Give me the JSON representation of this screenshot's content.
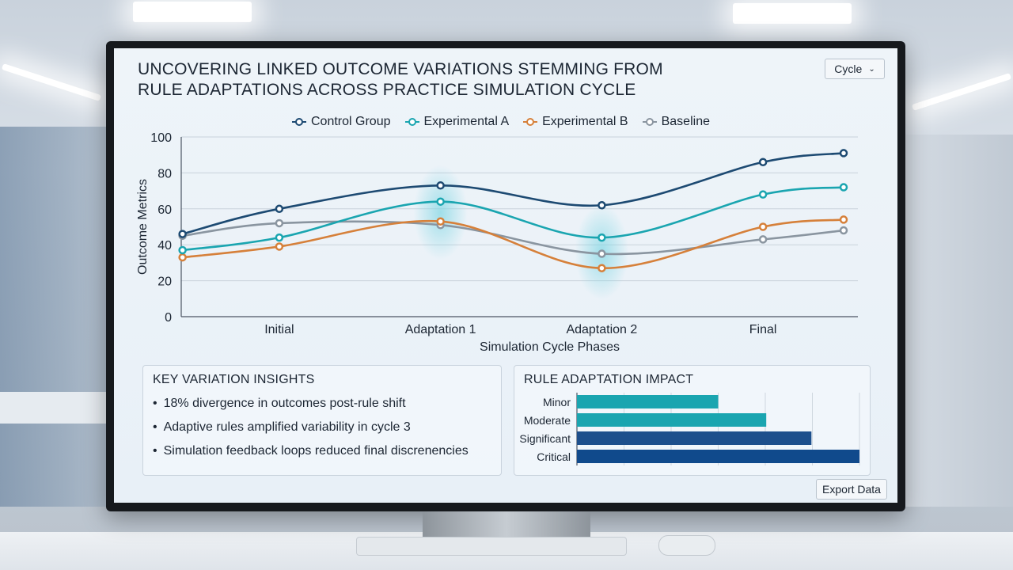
{
  "page": {
    "title_line1": "UNCOVERING LINKED OUTCOME VARIATIONS STEMMING FROM",
    "title_line2": "RULE ADAPTATIONS ACROSS PRACTICE SIMULATION CYCLE",
    "cycle_select": {
      "value": "Cycle",
      "icon": "chevron-down-icon"
    },
    "export_label": "Export Data"
  },
  "insights": {
    "title": "KEY VARIATION INSIGHTS",
    "items": [
      "18% divergence in outcomes post-rule shift",
      "Adaptive rules amplified variability in cycle 3",
      "Simulation feedback loops reduced final discrenencies"
    ]
  },
  "chart_data": [
    {
      "type": "line",
      "title": "",
      "xlabel": "Simulation Cycle Phases",
      "ylabel": "Outcome Metrics",
      "ylim": [
        0,
        100
      ],
      "yticks": [
        0,
        20,
        40,
        60,
        80,
        100
      ],
      "categories": [
        "Initial",
        "Adaptation 1",
        "Adaptation 2",
        "Final"
      ],
      "x": [
        0.0,
        0.5,
        1.5,
        2.0,
        2.5,
        3.5,
        4.0
      ],
      "legend_position": "top",
      "grid": true,
      "series": [
        {
          "name": "Control Group",
          "color": "#1d4a72",
          "values": [
            46,
            60,
            73,
            62,
            86,
            91
          ],
          "x": [
            0.0,
            0.5,
            1.5,
            2.5,
            3.5,
            4.0
          ]
        },
        {
          "name": "Experimental A",
          "color": "#1aa5b0",
          "values": [
            37,
            44,
            64,
            44,
            68,
            72
          ],
          "x": [
            0.0,
            0.5,
            1.5,
            2.5,
            3.5,
            4.0
          ]
        },
        {
          "name": "Experimental B",
          "color": "#d6803a",
          "values": [
            33,
            39,
            53,
            27,
            50,
            54
          ],
          "x": [
            0.0,
            0.5,
            1.5,
            2.5,
            3.5,
            4.0
          ]
        },
        {
          "name": "Baseline",
          "color": "#8a95a0",
          "values": [
            45,
            52,
            51,
            35,
            43,
            48
          ],
          "x": [
            0.0,
            0.5,
            1.5,
            2.5,
            3.5,
            4.0
          ]
        }
      ]
    },
    {
      "type": "bar",
      "orientation": "horizontal",
      "title": "RULE ADAPTATION IMPACT",
      "categories": [
        "Minor",
        "Moderate",
        "Significant",
        "Critical"
      ],
      "values": [
        50,
        67,
        83,
        100
      ],
      "colors": [
        "#1aa5b0",
        "#1aa5b0",
        "#1d4f8c",
        "#104a8c"
      ],
      "xlim": [
        0,
        100
      ],
      "grid": true
    }
  ]
}
